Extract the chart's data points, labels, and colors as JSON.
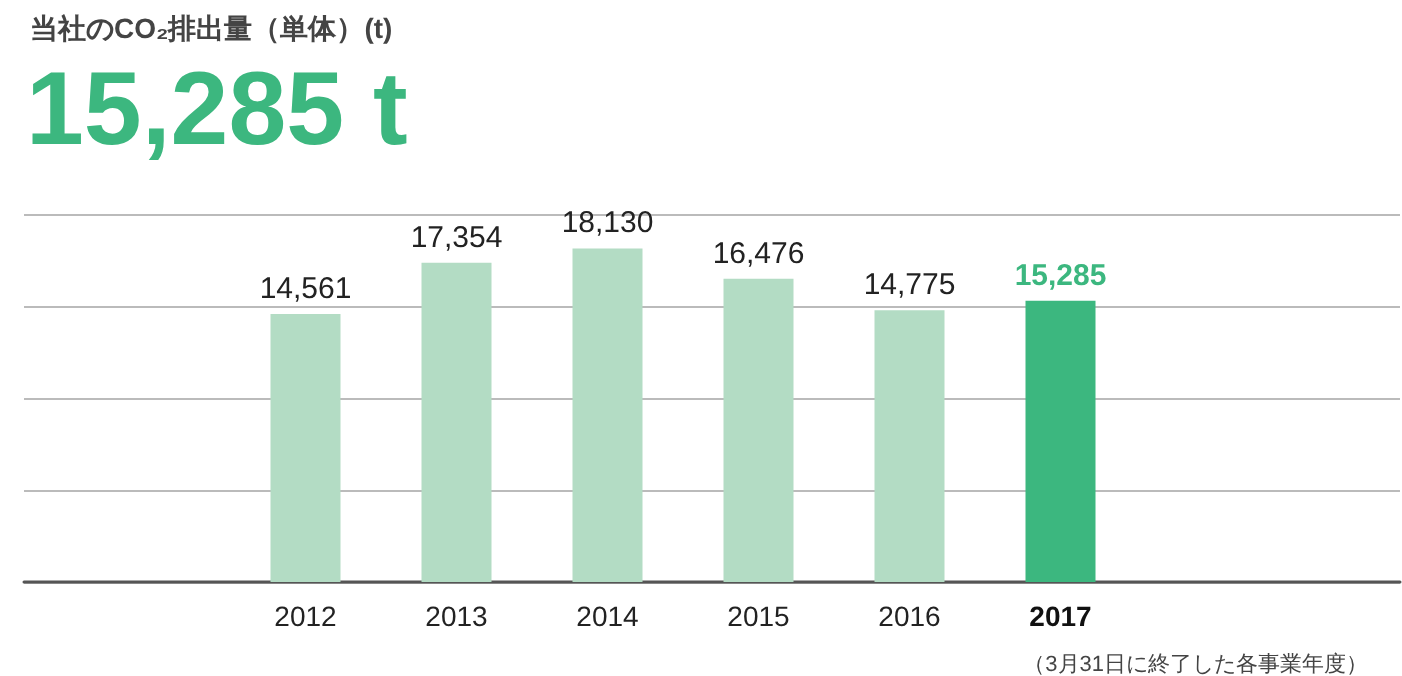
{
  "chart_data": {
    "type": "bar",
    "title": "当社のCO₂排出量（単体）(t)",
    "subtitle": "15,285 t",
    "categories": [
      "2012",
      "2013",
      "2014",
      "2015",
      "2016",
      "2017"
    ],
    "values": [
      14561,
      17354,
      18130,
      16476,
      14775,
      15285
    ],
    "colors": [
      "#b3dcc4",
      "#b3dcc4",
      "#b3dcc4",
      "#b3dcc4",
      "#b3dcc4",
      "#3cb77f"
    ],
    "value_labels": [
      "14,561",
      "17,354",
      "18,130",
      "16,476",
      "14,775",
      "15,285"
    ],
    "grid": "y",
    "annotations": [
      "（3月31日に終了した各事業年度）"
    ]
  }
}
